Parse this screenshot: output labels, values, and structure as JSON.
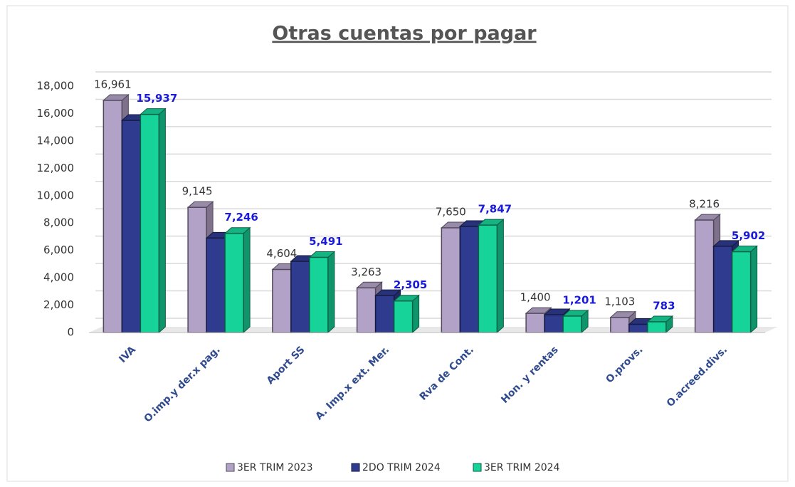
{
  "chart_data": {
    "type": "bar",
    "title": "Otras cuentas por pagar",
    "categories": [
      "IVA",
      "O.imp.y der.x pag.",
      "Aport SS",
      "A. Imp.x ext. Mer.",
      "Rva de Cont.",
      "Hon. y rentas",
      "O.provs.",
      "O.acreed.divs."
    ],
    "series": [
      {
        "name": "3ER TRIM 2023",
        "color": "#b3a2c7",
        "values": [
          16961,
          9145,
          4604,
          3263,
          7650,
          1400,
          1103,
          8216
        ],
        "value_labels": [
          "16,961",
          "9,145",
          "4,604",
          "3,263",
          "7,650",
          "1,400",
          "1,103",
          "8,216"
        ]
      },
      {
        "name": "2DO TRIM 2024",
        "color": "#2e3b8f",
        "values": [
          15500,
          6900,
          5200,
          2700,
          7750,
          1300,
          600,
          6300
        ]
      },
      {
        "name": "3ER TRIM 2024",
        "color": "#16d399",
        "values": [
          15937,
          7246,
          5491,
          2305,
          7847,
          1201,
          783,
          5902
        ],
        "value_labels": [
          "15,937",
          "7,246",
          "5,491",
          "2,305",
          "7,847",
          "1,201",
          "783",
          "5,902"
        ]
      }
    ],
    "ylim": [
      0,
      18000
    ],
    "yticks": [
      0,
      {
        "value": 2000,
        "label": "2,000"
      },
      {
        "value": 4000,
        "label": "4,000"
      },
      {
        "value": 6000,
        "label": "6,000"
      },
      {
        "value": 8000,
        "label": "8,000"
      },
      {
        "value": 10000,
        "label": "10,000"
      },
      {
        "value": 12000,
        "label": "12,000"
      },
      {
        "value": 14000,
        "label": "14,000"
      },
      {
        "value": 16000,
        "label": "16,000"
      },
      {
        "value": 18000,
        "label": "18,000"
      }
    ],
    "grid": true,
    "legend": "bottom"
  }
}
